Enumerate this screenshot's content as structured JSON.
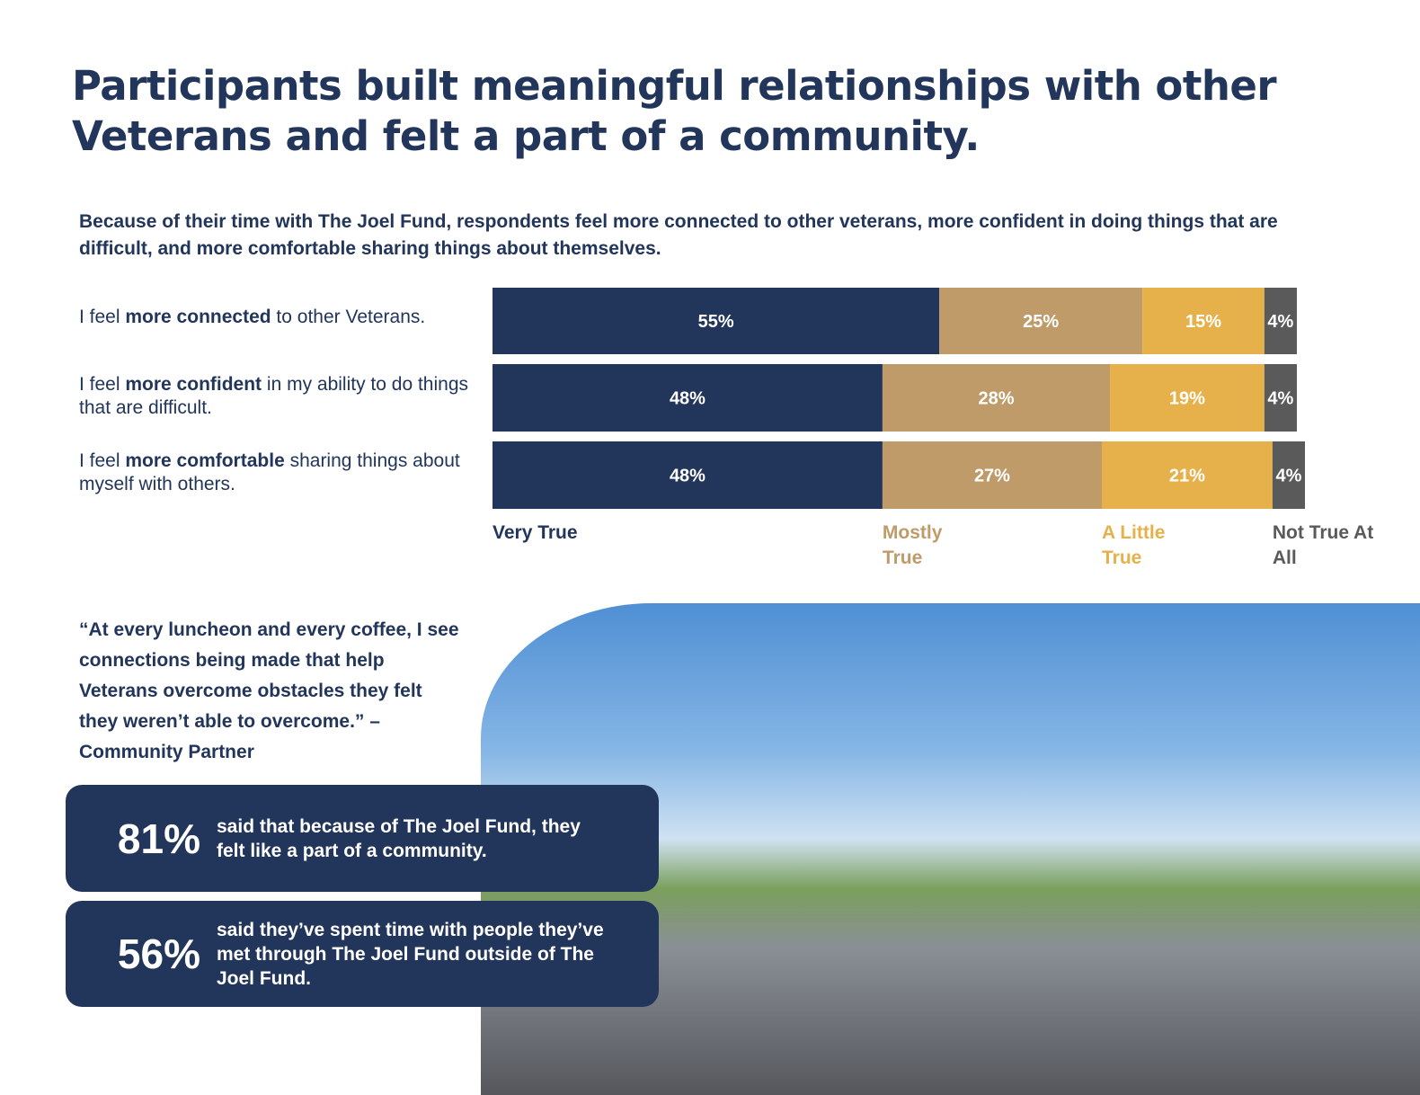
{
  "header": {
    "title": "Participants built meaningful relationships with other Veterans and felt a part of a community.",
    "subtitle": "Because of their time with The Joel Fund, respondents feel more connected to other veterans, more confident in doing things that are difficult, and more comfortable sharing things about themselves."
  },
  "chart_data": {
    "type": "stacked-bar-horizontal",
    "categories": [
      [
        "I feel ",
        "more connected",
        " to other Veterans."
      ],
      [
        "I feel ",
        "more confident",
        " in my ability to do things that are difficult."
      ],
      [
        "I feel ",
        "more comfortable",
        " sharing things about myself with others."
      ]
    ],
    "series": [
      {
        "name": "Very True",
        "color": "#22355a",
        "values": [
          55,
          48,
          48
        ],
        "value_labels": [
          "55%",
          "48%",
          "48%"
        ]
      },
      {
        "name": "Mostly True",
        "color": "#bf9b6a",
        "values": [
          25,
          28,
          27
        ],
        "value_labels": [
          "25%",
          "28%",
          "27%"
        ]
      },
      {
        "name": "A Little True",
        "color": "#e6b04a",
        "values": [
          15,
          19,
          21
        ],
        "value_labels": [
          "15%",
          "19%",
          "21%"
        ]
      },
      {
        "name": "Not True At All",
        "color": "#5a5a5a",
        "values": [
          4,
          4,
          4
        ],
        "value_labels": [
          "4%",
          "4%",
          "4%"
        ]
      }
    ],
    "xlim": [
      0,
      100
    ]
  },
  "quote": "“At every luncheon and every coffee, I see connections being made that help Veterans overcome obstacles they felt they weren’t able to overcome.” – Community Partner",
  "stats": [
    {
      "figure": "81%",
      "text": "said that because of The Joel Fund, they felt like a part of a community."
    },
    {
      "figure": "56%",
      "text": "said they’ve spent time with people they’ve met through The Joel Fund outside of The Joel Fund."
    }
  ]
}
